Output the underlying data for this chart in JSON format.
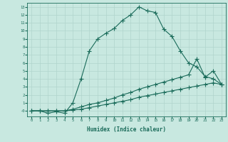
{
  "xlabel": "Humidex (Indice chaleur)",
  "bg_color": "#c8e8e0",
  "grid_color": "#b0d4cc",
  "line_color": "#1a6b5a",
  "xlim": [
    -0.5,
    23.5
  ],
  "ylim": [
    -0.7,
    13.5
  ],
  "xticks": [
    0,
    1,
    2,
    3,
    4,
    5,
    6,
    7,
    8,
    9,
    10,
    11,
    12,
    13,
    14,
    15,
    16,
    17,
    18,
    19,
    20,
    21,
    22,
    23
  ],
  "yticks": [
    0,
    1,
    2,
    3,
    4,
    5,
    6,
    7,
    8,
    9,
    10,
    11,
    12,
    13
  ],
  "ytick_labels": [
    "-0",
    "1",
    "2",
    "3",
    "4",
    "5",
    "6",
    "7",
    "8",
    "9",
    "10",
    "11",
    "12",
    "13"
  ],
  "line1_x": [
    0,
    1,
    2,
    3,
    4,
    5,
    6,
    7,
    8,
    9,
    10,
    11,
    12,
    13,
    14,
    15,
    16,
    17,
    18,
    19,
    20,
    21,
    22,
    23
  ],
  "line1_y": [
    0,
    0,
    -0.3,
    -0.1,
    -0.3,
    1.0,
    4.0,
    7.5,
    9.0,
    9.7,
    10.3,
    11.3,
    12.0,
    13.0,
    12.5,
    12.3,
    10.2,
    9.3,
    7.5,
    6.0,
    5.5,
    4.3,
    4.0,
    3.3
  ],
  "line2_x": [
    0,
    1,
    2,
    3,
    4,
    5,
    6,
    7,
    8,
    9,
    10,
    11,
    12,
    13,
    14,
    15,
    16,
    17,
    18,
    19,
    20,
    21,
    22,
    23
  ],
  "line2_y": [
    0,
    0,
    0,
    0,
    0,
    0.2,
    0.5,
    0.8,
    1.0,
    1.3,
    1.6,
    2.0,
    2.3,
    2.7,
    3.0,
    3.3,
    3.6,
    3.9,
    4.2,
    4.5,
    6.5,
    4.2,
    5.0,
    3.3
  ],
  "line3_x": [
    0,
    1,
    2,
    3,
    4,
    5,
    6,
    7,
    8,
    9,
    10,
    11,
    12,
    13,
    14,
    15,
    16,
    17,
    18,
    19,
    20,
    21,
    22,
    23
  ],
  "line3_y": [
    0,
    0,
    0,
    0,
    0,
    0.1,
    0.2,
    0.4,
    0.6,
    0.8,
    1.0,
    1.2,
    1.4,
    1.7,
    1.9,
    2.1,
    2.3,
    2.5,
    2.7,
    2.9,
    3.1,
    3.3,
    3.5,
    3.3
  ]
}
